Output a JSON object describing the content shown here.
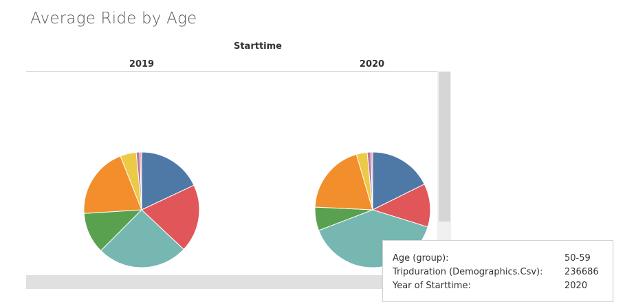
{
  "chart": {
    "title": "Average Ride by Age",
    "column_field": "Starttime",
    "columns": [
      "2019",
      "2020"
    ]
  },
  "chart_data": {
    "type": "pie",
    "title": "Average Ride by Age",
    "column_field": "Starttime",
    "colors": [
      "#4e79a7",
      "#e15759",
      "#76b7b2",
      "#59a14f",
      "#f28e2b",
      "#edc948",
      "#b07aa1",
      "#ff9da7"
    ],
    "pies": [
      {
        "year": "2019",
        "values": [
          18,
          19,
          25.5,
          11.5,
          20,
          4.5,
          1,
          0.5
        ]
      },
      {
        "year": "2020",
        "values": [
          17.5,
          12,
          39,
          6.5,
          19.5,
          3,
          1,
          0.5
        ]
      }
    ]
  },
  "tooltip": {
    "rows": [
      {
        "label": "Age (group):",
        "value": "50-59"
      },
      {
        "label": "Tripduration (Demographics.Csv):",
        "value": "236686"
      },
      {
        "label": "Year of Starttime:",
        "value": "2020"
      }
    ]
  }
}
